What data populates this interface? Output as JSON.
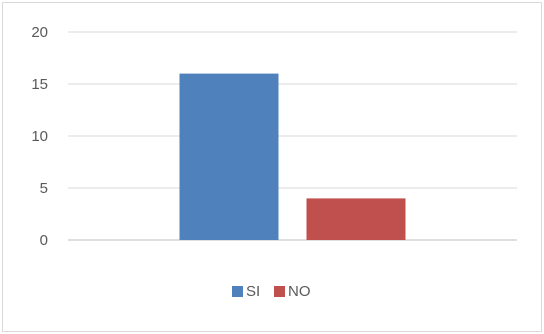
{
  "chart_data": {
    "type": "bar",
    "categories": [
      ""
    ],
    "series": [
      {
        "name": "SI",
        "values": [
          16
        ],
        "color": "#4f81bd"
      },
      {
        "name": "NO",
        "values": [
          4
        ],
        "color": "#c0504d"
      }
    ],
    "yticks": [
      "0",
      "5",
      "10",
      "15",
      "20"
    ],
    "ylim": [
      0,
      20
    ],
    "grid": true,
    "legend_position": "bottom"
  }
}
